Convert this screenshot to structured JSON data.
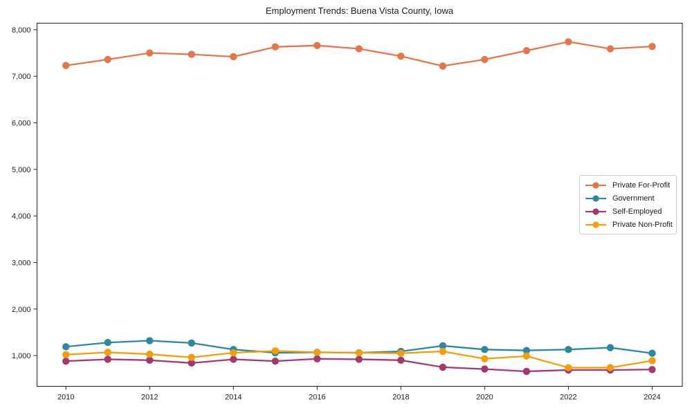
{
  "chart_data": {
    "type": "line",
    "title": "Employment Trends: Buena Vista County, Iowa",
    "xlabel": "",
    "ylabel": "",
    "grid": false,
    "legend_position": "center-right",
    "x": [
      2010,
      2011,
      2012,
      2013,
      2014,
      2015,
      2016,
      2017,
      2018,
      2019,
      2020,
      2021,
      2022,
      2023,
      2024
    ],
    "x_tick_values": [
      2010,
      2012,
      2014,
      2016,
      2018,
      2020,
      2022,
      2024
    ],
    "x_tick_labels": [
      "2010",
      "2012",
      "2014",
      "2016",
      "2018",
      "2020",
      "2022",
      "2024"
    ],
    "y_tick_values": [
      1000,
      2000,
      3000,
      4000,
      5000,
      6000,
      7000,
      8000
    ],
    "y_tick_labels": [
      "1,000",
      "2,000",
      "3,000",
      "4,000",
      "5,000",
      "6,000",
      "7,000",
      "8,000"
    ],
    "xlim": [
      2009.31,
      2024.72
    ],
    "ylim": [
      340,
      8140
    ],
    "axis_color": "#1a1a1a",
    "series": [
      {
        "name": "Private For-Profit",
        "color": "#E4764C",
        "values": [
          7230,
          7360,
          7500,
          7470,
          7420,
          7630,
          7660,
          7590,
          7430,
          7220,
          7360,
          7550,
          7740,
          7590,
          7640
        ]
      },
      {
        "name": "Government",
        "color": "#2E87A1",
        "values": [
          1190,
          1280,
          1320,
          1270,
          1130,
          1060,
          1070,
          1060,
          1090,
          1210,
          1130,
          1110,
          1130,
          1170,
          1050
        ]
      },
      {
        "name": "Self-Employed",
        "color": "#A13A70",
        "values": [
          880,
          920,
          900,
          840,
          920,
          880,
          930,
          920,
          900,
          750,
          710,
          660,
          690,
          690,
          700
        ]
      },
      {
        "name": "Private Non-Profit",
        "color": "#F09D0E",
        "values": [
          1020,
          1070,
          1030,
          960,
          1060,
          1100,
          1070,
          1060,
          1050,
          1090,
          930,
          990,
          740,
          740,
          890
        ]
      }
    ]
  }
}
